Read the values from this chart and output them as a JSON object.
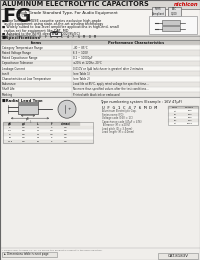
{
  "bg_color": "#f0eeeb",
  "title": "ALUMINUM ELECTROLYTIC CAPACITORS",
  "brand": "nichicon",
  "series": "FG",
  "series_sub": "(2/10)",
  "series_desc": "High Grade Standard Type, For Audio Equipment",
  "header_line_color": "#888888",
  "text_dark": "#1a1a1a",
  "text_mid": "#444444",
  "text_light": "#777777",
  "footer_cat": "CAT.8183V",
  "header_bg": "#d8d6d2",
  "table_header_bg": "#c8c6c2",
  "table_alt_bg": "#e8e6e2",
  "spec_rows": [
    [
      "Items",
      "Performance Characteristics"
    ],
    [
      "Category Temperature Range",
      "-40 ~ 85°C"
    ],
    [
      "Rated Voltage Range",
      "6.3 ~ 100V"
    ],
    [
      "Rated Capacitance Range",
      "0.1 ~ 10000μF"
    ],
    [
      "Capacitance Tolerance",
      "±20% at 120Hz, 20°C"
    ],
    [
      "Leakage Current",
      "0.01CV or 3μA (whichever is greater) after 2 minutes"
    ],
    [
      "tan δ",
      "(see Table 1)"
    ],
    [
      "Characteristics at Low Temperature",
      "(see Table 2)"
    ],
    [
      "Endurance",
      "Load life at 85°C, apply rated voltage for specified time..."
    ],
    [
      "Shelf Life",
      "No more than specified values after the test conditions..."
    ],
    [
      "Marking",
      "Printed with black ink or embossed"
    ]
  ],
  "bullets": [
    "■ FineTuned™: MUSE cassette series exclusive high-grade",
    "  audio equipment using state-of-the-art winding technology",
    "■ Widely suited to low-level amplifier applications in high-end, small",
    "  radius set for equipment like DAT, MD",
    "■ Adapted to the RoHS directive (2002/95/EC)"
  ],
  "type_example": "Type numbering system (Example : 16V 47μF)",
  "type_code": "UFG1C476MDM",
  "lead_section": "■Radial Lead Type"
}
